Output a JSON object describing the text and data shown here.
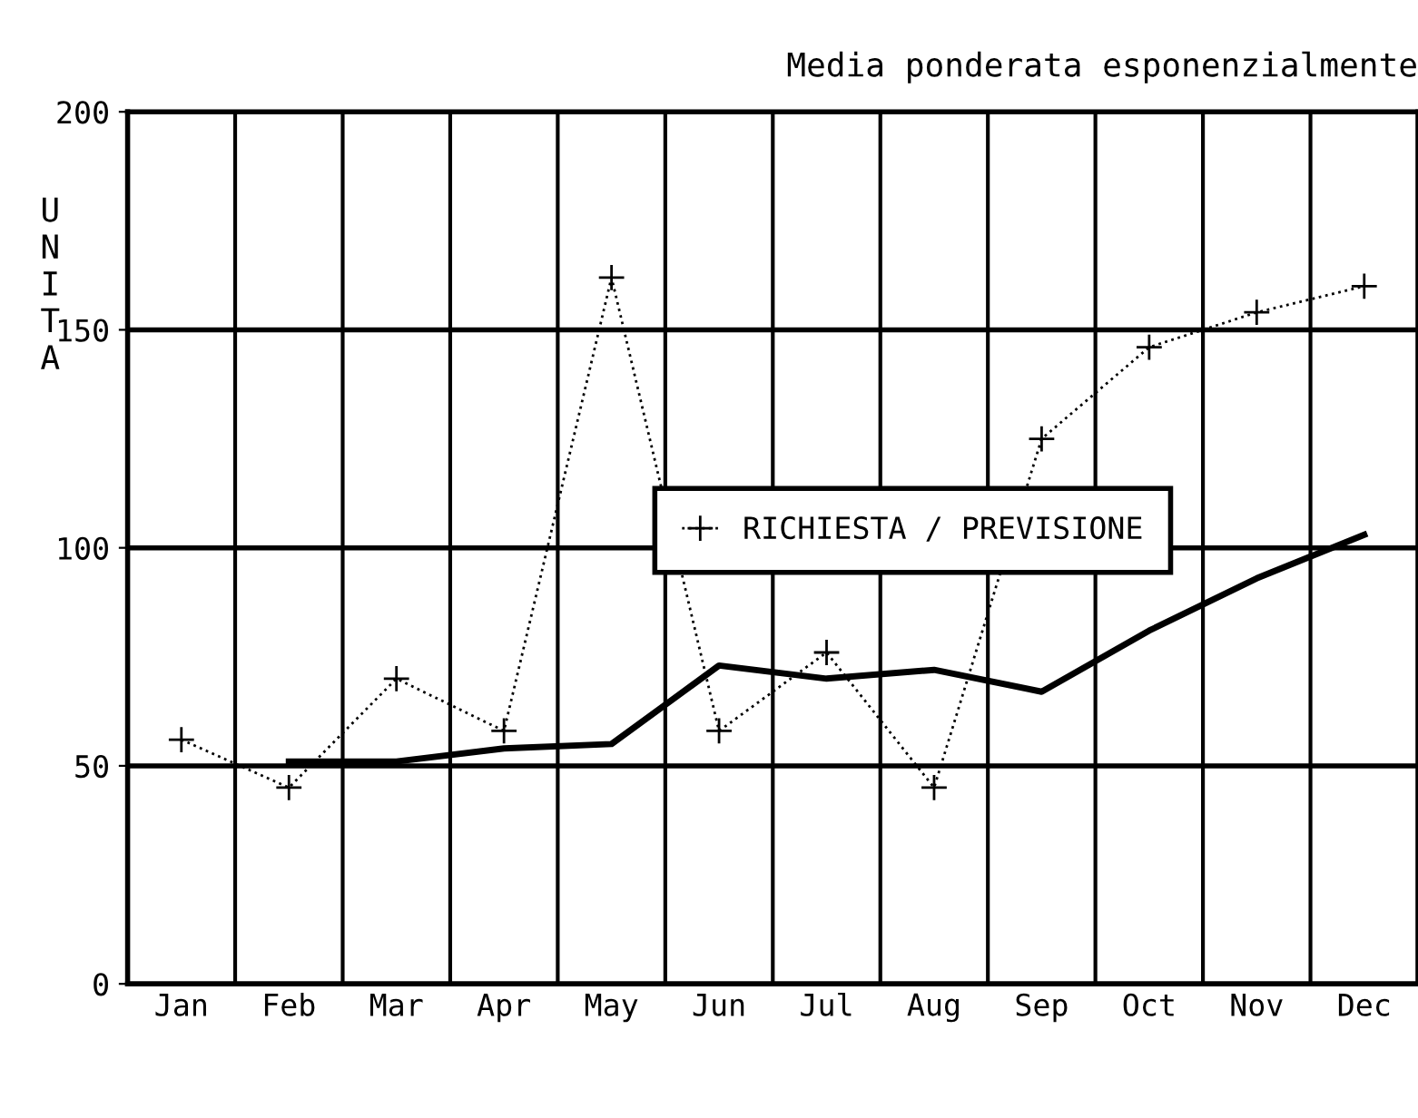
{
  "chart_data": {
    "type": "line",
    "title": "Media ponderata esponenzialmente",
    "ylabel": "UNITA",
    "categories": [
      "Jan",
      "Feb",
      "Mar",
      "Apr",
      "May",
      "Jun",
      "Jul",
      "Aug",
      "Sep",
      "Oct",
      "Nov",
      "Dec"
    ],
    "series": [
      {
        "name": "RICHIESTA / PREVISIONE",
        "color": "#000000",
        "marker": "cross",
        "line_style": "dotted",
        "values": [
          56,
          45,
          70,
          58,
          162,
          58,
          76,
          45,
          125,
          146,
          154,
          160
        ]
      },
      {
        "color": "#000000",
        "marker": "none",
        "line_style": "solid",
        "values": [
          null,
          51,
          51,
          54,
          55,
          73,
          70,
          72,
          67,
          81,
          93,
          103
        ]
      }
    ],
    "ylim": [
      0,
      200
    ],
    "yticks": [
      0,
      50,
      100,
      150,
      200
    ],
    "grid": true,
    "legend": "center right"
  }
}
